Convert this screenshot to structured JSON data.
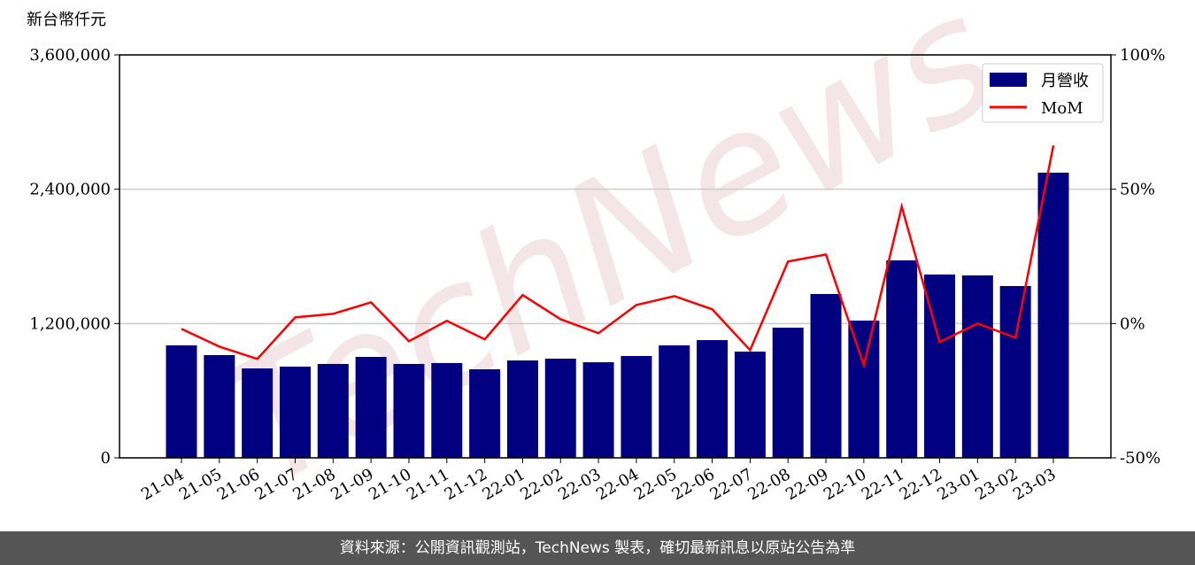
{
  "chart_data": {
    "type": "bar_line",
    "y_label": "新台幣仟元",
    "watermark": "TechNews",
    "categories": [
      "21-04",
      "21-05",
      "21-06",
      "21-07",
      "21-08",
      "21-09",
      "21-10",
      "21-11",
      "21-12",
      "22-01",
      "22-02",
      "22-03",
      "22-04",
      "22-05",
      "22-06",
      "22-07",
      "22-08",
      "22-09",
      "22-10",
      "22-11",
      "22-12",
      "23-01",
      "23-02",
      "23-03"
    ],
    "series": [
      {
        "name": "月營收",
        "color": "#000080",
        "type": "bar",
        "values": [
          1005000,
          918000,
          799000,
          815000,
          839000,
          902000,
          839000,
          847000,
          791000,
          870000,
          886000,
          854000,
          910000,
          1005000,
          1052000,
          949000,
          1163000,
          1464000,
          1226000,
          1764000,
          1638000,
          1630000,
          1535000,
          2548000
        ]
      },
      {
        "name": "MoM",
        "color": "#ff0000",
        "type": "line",
        "axis": "y2",
        "values": [
          -2,
          -8.6,
          -13.2,
          2.3,
          3.6,
          7.9,
          -6.6,
          1,
          -5.9,
          10.6,
          1.6,
          -3.6,
          6.9,
          10.2,
          5.3,
          -9.9,
          23.1,
          25.7,
          -15.5,
          43.5,
          -6.9,
          0,
          -5.3,
          66.3
        ]
      }
    ],
    "ylim": [
      0,
      3600000
    ],
    "yticks": [
      0,
      {
        "value": 1200000,
        "label": "1,200,000"
      },
      {
        "value": 2400000,
        "label": "2,400,000"
      },
      {
        "value": 3600000,
        "label": "3,600,000"
      }
    ],
    "y2lim": [
      -50,
      100
    ],
    "y2ticks": [
      {
        "value": -50,
        "label": "-50%"
      },
      {
        "value": 0,
        "label": "0%"
      },
      {
        "value": 50,
        "label": "50%"
      },
      {
        "value": 100,
        "label": "100%"
      }
    ],
    "grid": true,
    "legend": "upper right"
  },
  "footer": "資料來源：公開資訊觀測站，TechNews 製表，確切最新訊息以原站公告為準"
}
